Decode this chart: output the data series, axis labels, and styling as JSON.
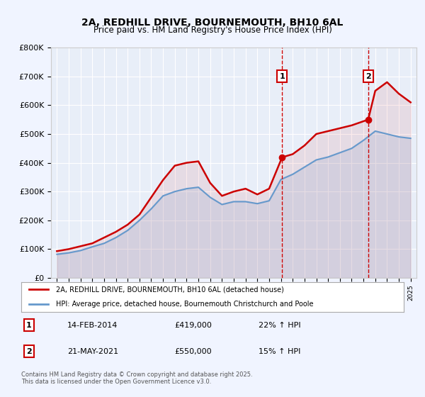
{
  "title": "2A, REDHILL DRIVE, BOURNEMOUTH, BH10 6AL",
  "subtitle": "Price paid vs. HM Land Registry's House Price Index (HPI)",
  "xlabel": "",
  "ylabel": "",
  "background_color": "#f0f4ff",
  "plot_bg_color": "#ffffff",
  "red_line_color": "#cc0000",
  "blue_line_color": "#6699cc",
  "ylim": [
    0,
    800000
  ],
  "xlim_start": 1995,
  "xlim_end": 2025.5,
  "marker1_year": 2014.1,
  "marker2_year": 2021.4,
  "marker1_label": "1",
  "marker2_label": "2",
  "marker1_date": "14-FEB-2014",
  "marker1_price": "£419,000",
  "marker1_hpi": "22% ↑ HPI",
  "marker2_date": "21-MAY-2021",
  "marker2_price": "£550,000",
  "marker2_hpi": "15% ↑ HPI",
  "legend1": "2A, REDHILL DRIVE, BOURNEMOUTH, BH10 6AL (detached house)",
  "legend2": "HPI: Average price, detached house, Bournemouth Christchurch and Poole",
  "footer": "Contains HM Land Registry data © Crown copyright and database right 2025.\nThis data is licensed under the Open Government Licence v3.0.",
  "red_years": [
    1995,
    1996,
    1997,
    1998,
    1999,
    2000,
    2001,
    2002,
    2003,
    2004,
    2005,
    2006,
    2007,
    2008,
    2009,
    2010,
    2011,
    2012,
    2013,
    2014.1,
    2015,
    2016,
    2017,
    2018,
    2019,
    2020,
    2021.4,
    2022,
    2023,
    2024,
    2025
  ],
  "red_values": [
    93000,
    100000,
    110000,
    120000,
    140000,
    160000,
    185000,
    220000,
    280000,
    340000,
    390000,
    400000,
    405000,
    330000,
    285000,
    300000,
    310000,
    290000,
    310000,
    419000,
    430000,
    460000,
    500000,
    510000,
    520000,
    530000,
    550000,
    650000,
    680000,
    640000,
    610000
  ],
  "blue_years": [
    1995,
    1996,
    1997,
    1998,
    1999,
    2000,
    2001,
    2002,
    2003,
    2004,
    2005,
    2006,
    2007,
    2008,
    2009,
    2010,
    2011,
    2012,
    2013,
    2014,
    2015,
    2016,
    2017,
    2018,
    2019,
    2020,
    2021,
    2022,
    2023,
    2024,
    2025
  ],
  "blue_values": [
    82000,
    87000,
    95000,
    108000,
    120000,
    140000,
    165000,
    200000,
    240000,
    285000,
    300000,
    310000,
    315000,
    280000,
    255000,
    265000,
    265000,
    258000,
    268000,
    342000,
    360000,
    385000,
    410000,
    420000,
    435000,
    450000,
    478000,
    510000,
    500000,
    490000,
    485000
  ]
}
